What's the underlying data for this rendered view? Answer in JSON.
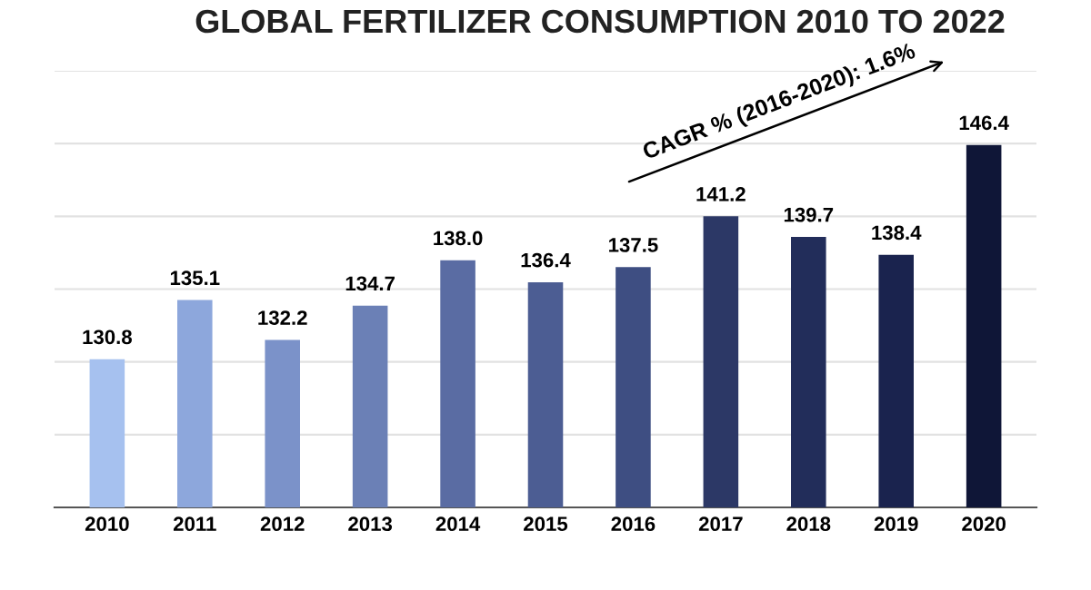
{
  "chart_data": {
    "type": "bar",
    "title": "GLOBAL FERTILIZER CONSUMPTION 2010 TO 2022",
    "categories": [
      "2010",
      "2011",
      "2012",
      "2013",
      "2014",
      "2015",
      "2016",
      "2017",
      "2018",
      "2019",
      "2020"
    ],
    "values": [
      130.8,
      135.1,
      132.2,
      134.7,
      138.0,
      136.4,
      137.5,
      141.2,
      139.7,
      138.4,
      146.4
    ],
    "colors": [
      "#a6c1ef",
      "#8da7dc",
      "#7b92c9",
      "#6b80b6",
      "#5a6ca3",
      "#4c5d93",
      "#3e4e82",
      "#2c3866",
      "#222d5a",
      "#1a234e",
      "#0f1637"
    ],
    "ylim": [
      120,
      151.8
    ],
    "yticks": [
      {
        "value": 125.3,
        "label": null
      },
      {
        "value": 130.6,
        "label": null
      },
      {
        "value": 135.9,
        "label": null
      },
      {
        "value": 141.2,
        "label": null
      },
      {
        "value": 146.5,
        "label": null
      },
      {
        "value": 151.8,
        "label": null
      }
    ],
    "tick_labels": "x",
    "grid": "y",
    "value_labels": [
      "130.8",
      "135.1",
      "132.2",
      "134.7",
      "138.0",
      "136.4",
      "137.5",
      "141.2",
      "139.7",
      "138.4",
      "146.4"
    ],
    "annotations": [
      "CAGR % (2016-2020): 1.6%"
    ]
  }
}
